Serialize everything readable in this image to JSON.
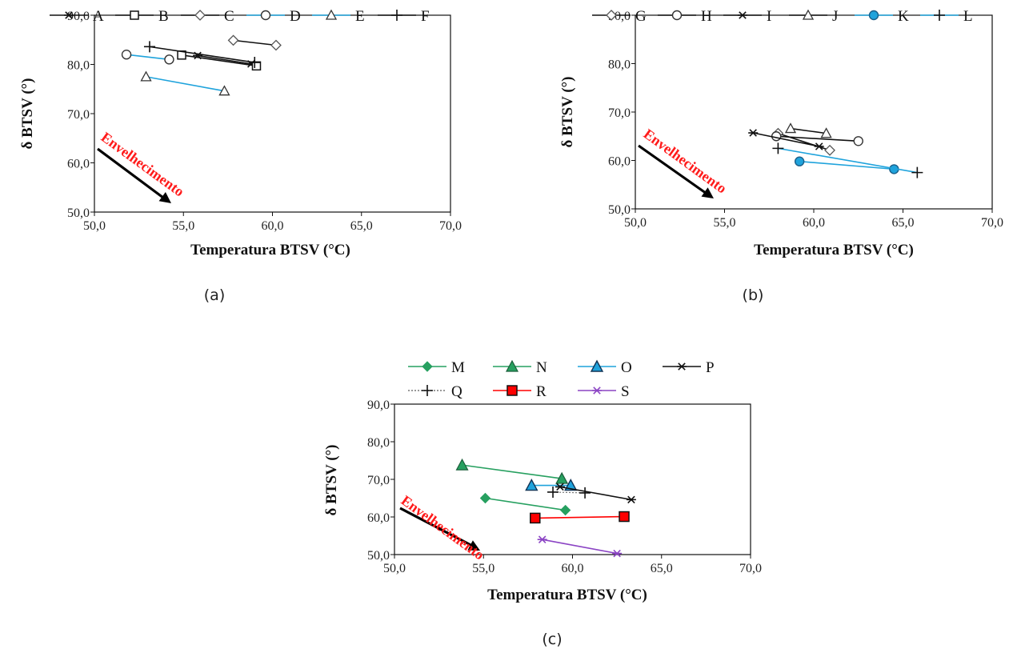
{
  "colors": {
    "black": "#111111",
    "blue": "#1fa3dc",
    "green": "#27a060",
    "red": "#ff0000",
    "purple": "#8b44c4",
    "annotation": "#ff1a1a"
  },
  "annotation_text": "Envelhecimento",
  "chart_data": [
    {
      "type": "line",
      "caption": "(a)",
      "xlabel": "Temperatura   BTSV (°C)",
      "ylabel": "δ BTSV (°)",
      "xlim": [
        50,
        70
      ],
      "ylim": [
        50,
        90
      ],
      "xticks": [
        "50,0",
        "55,0",
        "60,0",
        "65,0",
        "70,0"
      ],
      "yticks": [
        "50,0",
        "60,0",
        "70,0",
        "80,0",
        "90,0"
      ],
      "series": [
        {
          "name": "A",
          "marker": "asterisk",
          "color": "#111111",
          "x": [
            55.8,
            58.8
          ],
          "y": [
            81.8,
            80.1
          ]
        },
        {
          "name": "B",
          "marker": "square",
          "color": "#111111",
          "x": [
            54.9,
            59.1
          ],
          "y": [
            81.9,
            79.7
          ]
        },
        {
          "name": "C",
          "marker": "diamond",
          "color": "#111111",
          "x": [
            57.8,
            60.2
          ],
          "y": [
            84.9,
            83.9
          ]
        },
        {
          "name": "D",
          "marker": "circle",
          "color": "#1fa3dc",
          "x": [
            51.8,
            54.2
          ],
          "y": [
            82.0,
            81.0
          ]
        },
        {
          "name": "E",
          "marker": "triangle",
          "color": "#1fa3dc",
          "x": [
            52.9,
            57.3
          ],
          "y": [
            77.5,
            74.6
          ]
        },
        {
          "name": "F",
          "marker": "plus",
          "color": "#111111",
          "x": [
            53.1,
            59.0
          ],
          "y": [
            83.6,
            80.4
          ]
        }
      ]
    },
    {
      "type": "line",
      "caption": "(b)",
      "xlabel": "Temperatura   BTSV (°C)",
      "ylabel": "δ BTSV (°)",
      "xlim": [
        50,
        70
      ],
      "ylim": [
        50,
        90
      ],
      "xticks": [
        "50,0",
        "55,0",
        "60,0",
        "65,0",
        "70,0"
      ],
      "yticks": [
        "50,0",
        "60,0",
        "70,0",
        "80,0",
        "90,0"
      ],
      "series": [
        {
          "name": "G",
          "marker": "diamond",
          "color": "#111111",
          "x": [
            58.0,
            60.9
          ],
          "y": [
            65.6,
            62.1
          ]
        },
        {
          "name": "H",
          "marker": "circle",
          "color": "#111111",
          "x": [
            57.9,
            62.5
          ],
          "y": [
            65.0,
            64.0
          ]
        },
        {
          "name": "I",
          "marker": "asterisk",
          "color": "#111111",
          "x": [
            56.6,
            60.3
          ],
          "y": [
            65.7,
            62.9
          ]
        },
        {
          "name": "J",
          "marker": "triangle",
          "color": "#111111",
          "x": [
            58.7,
            60.7
          ],
          "y": [
            66.6,
            65.6
          ]
        },
        {
          "name": "K",
          "marker": "circle-filled",
          "color": "#1fa3dc",
          "x": [
            59.2,
            64.5
          ],
          "y": [
            59.8,
            58.2
          ]
        },
        {
          "name": "L",
          "marker": "plus",
          "color": "#1fa3dc",
          "x": [
            58.0,
            65.8
          ],
          "y": [
            62.5,
            57.5
          ]
        }
      ]
    },
    {
      "type": "line",
      "caption": "(c)",
      "xlabel": "Temperatura   BTSV (°C)",
      "ylabel": "δ BTSV (°)",
      "xlim": [
        50,
        70
      ],
      "ylim": [
        50,
        90
      ],
      "xticks": [
        "50,0",
        "55,0",
        "60,0",
        "65,0",
        "70,0"
      ],
      "yticks": [
        "50,0",
        "60,0",
        "70,0",
        "80,0",
        "90,0"
      ],
      "series": [
        {
          "name": "M",
          "marker": "diamond-filled",
          "color": "#27a060",
          "x": [
            55.1,
            59.6
          ],
          "y": [
            65.0,
            61.8
          ]
        },
        {
          "name": "N",
          "marker": "triangle-filled",
          "color": "#27a060",
          "x": [
            53.8,
            59.4
          ],
          "y": [
            73.8,
            70.2
          ]
        },
        {
          "name": "O",
          "marker": "triangle-filled-blue",
          "color": "#1fa3dc",
          "x": [
            57.7,
            59.9
          ],
          "y": [
            68.4,
            68.4
          ]
        },
        {
          "name": "P",
          "marker": "asterisk",
          "color": "#111111",
          "x": [
            59.3,
            63.3
          ],
          "y": [
            68.0,
            64.6
          ]
        },
        {
          "name": "Q",
          "marker": "plus",
          "color": "#777777",
          "x": [
            58.9,
            60.7
          ],
          "y": [
            66.6,
            66.4
          ]
        },
        {
          "name": "R",
          "marker": "square-filled",
          "color": "#ff0000",
          "x": [
            57.9,
            62.9
          ],
          "y": [
            59.7,
            60.1
          ]
        },
        {
          "name": "S",
          "marker": "asterisk",
          "color": "#8b44c4",
          "x": [
            58.3,
            62.5
          ],
          "y": [
            54.0,
            50.3
          ]
        }
      ]
    }
  ]
}
